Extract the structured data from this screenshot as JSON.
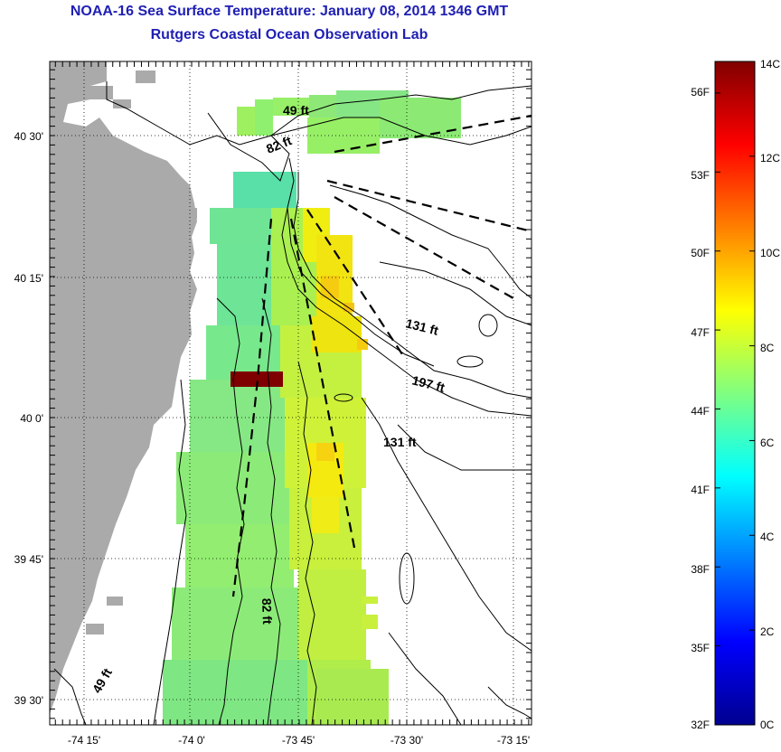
{
  "title": "NOAA-16 Sea Surface Temperature:  January 08, 2014 1346 GMT",
  "subtitle": "Rutgers Coastal Ocean Observation Lab",
  "lon_ticks": [
    "-74 15'",
    "-74 0'",
    "-73 45'",
    "-73 30'",
    "-73 15'"
  ],
  "lat_ticks": [
    "40 30'",
    "40 15'",
    "40 0'",
    "39 45'",
    "39 30'"
  ],
  "isobath_labels": [
    "49 ft",
    "82 ft",
    "131 ft",
    "197 ft",
    "131 ft",
    "82 ft",
    "49 ft"
  ],
  "colorbar": {
    "celsius": [
      "14C",
      "12C",
      "10C",
      "8C",
      "6C",
      "4C",
      "2C",
      "0C"
    ],
    "fahrenheit": [
      "56F",
      "53F",
      "50F",
      "47F",
      "44F",
      "41F",
      "38F",
      "35F",
      "32F"
    ],
    "min_c": 0,
    "max_c": 14
  },
  "colors": {
    "title": "#1f1fb4",
    "land": "#aaaaaa",
    "hotspot": "#7f0000"
  }
}
